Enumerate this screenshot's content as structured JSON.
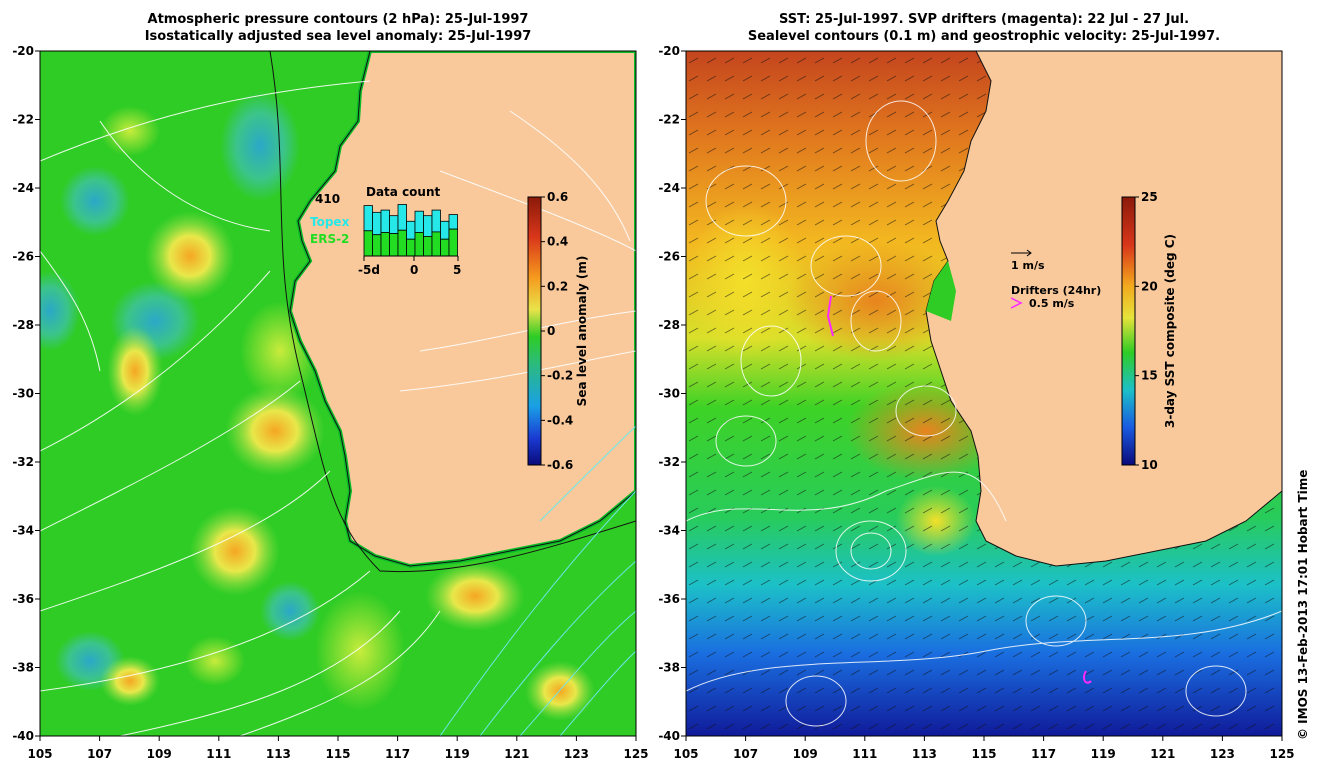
{
  "left": {
    "title_line1": "Atmospheric pressure contours (2 hPa): 25-Jul-1997",
    "title_line2": "Isostatically adjusted sea level anomaly: 25-Jul-1997",
    "y_ticks": [
      "-20",
      "-22",
      "-24",
      "-26",
      "-28",
      "-30",
      "-32",
      "-34",
      "-36",
      "-38",
      "-40"
    ],
    "x_ticks": [
      "105",
      "107",
      "109",
      "111",
      "113",
      "115",
      "117",
      "119",
      "121",
      "123",
      "125"
    ],
    "colorbar": {
      "label": "Sea level anomaly (m)",
      "ticks": [
        "0.6",
        "0.4",
        "0.2",
        "0",
        "-0.2",
        "-0.4",
        "-0.6"
      ]
    },
    "data_count": {
      "title": "Data count",
      "max_label": "410",
      "legend_topex": "Topex",
      "legend_ers": "ERS-2",
      "x_ticks": [
        "-5d",
        "0",
        "5"
      ],
      "bars_total": [
        0.9,
        0.78,
        0.82,
        0.72,
        0.92,
        0.62,
        0.8,
        0.72,
        0.82,
        0.62,
        0.74
      ],
      "bars_ers": [
        0.45,
        0.38,
        0.42,
        0.4,
        0.46,
        0.3,
        0.42,
        0.35,
        0.43,
        0.3,
        0.48
      ]
    }
  },
  "right": {
    "title_line1": "SST: 25-Jul-1997. SVP drifters (magenta): 22 Jul - 27 Jul.",
    "title_line2": "Sealevel contours (0.1 m) and geostrophic velocity: 25-Jul-1997.",
    "y_ticks": [
      "-20",
      "-22",
      "-24",
      "-26",
      "-28",
      "-30",
      "-32",
      "-34",
      "-36",
      "-38",
      "-40"
    ],
    "x_ticks": [
      "105",
      "107",
      "109",
      "111",
      "113",
      "115",
      "117",
      "119",
      "121",
      "123",
      "125"
    ],
    "colorbar": {
      "label": "3-day SST composite (deg C)",
      "ticks": [
        "25",
        "20",
        "15",
        "10"
      ]
    },
    "velocity_legend": "1 m/s",
    "drifters_legend": "Drifters (24hr)",
    "drifters_speed": "0.5 m/s"
  },
  "credit": "© IMOS 13-Feb-2013 17:01 Hobart Time",
  "colors": {
    "land": "#f9c99c",
    "sea_green": "#2ecc1f",
    "coast_green": "#0dbb2a"
  }
}
